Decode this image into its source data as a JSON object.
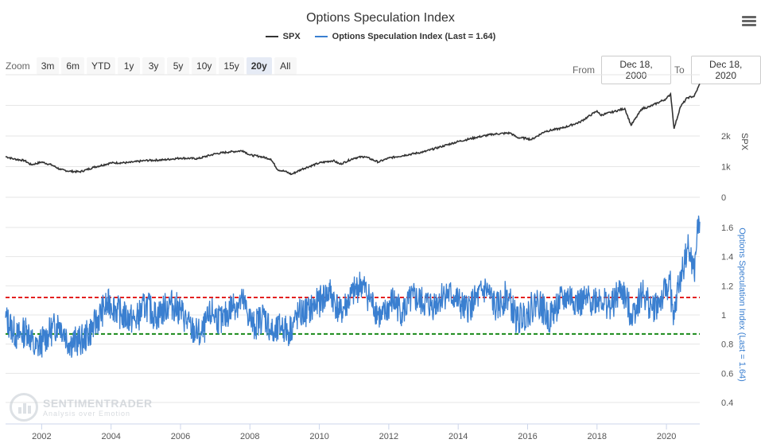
{
  "chart_data": [
    {
      "type": "line",
      "title": "Options Speculation Index",
      "series": [
        {
          "name": "SPX",
          "color": "#333333",
          "x": [
            2000.96,
            2001.2,
            2001.5,
            2001.7,
            2002.0,
            2002.3,
            2002.55,
            2002.8,
            2003.1,
            2003.3,
            2003.5,
            2004.0,
            2004.5,
            2005.0,
            2005.5,
            2006.0,
            2006.5,
            2007.0,
            2007.4,
            2007.8,
            2008.0,
            2008.3,
            2008.6,
            2008.8,
            2009.0,
            2009.2,
            2009.5,
            2010.0,
            2010.4,
            2010.6,
            2011.0,
            2011.3,
            2011.7,
            2012.0,
            2012.5,
            2013.0,
            2013.5,
            2014.0,
            2014.5,
            2015.0,
            2015.5,
            2015.7,
            2016.0,
            2016.1,
            2016.5,
            2017.0,
            2017.5,
            2018.0,
            2018.1,
            2018.5,
            2018.8,
            2018.98,
            2019.3,
            2019.5,
            2020.0,
            2020.12,
            2020.22,
            2020.4,
            2020.6,
            2020.8,
            2020.96
          ],
          "values": [
            1330,
            1250,
            1200,
            1060,
            1150,
            1050,
            900,
            850,
            830,
            900,
            980,
            1120,
            1130,
            1200,
            1220,
            1280,
            1260,
            1420,
            1480,
            1520,
            1380,
            1330,
            1250,
            900,
            850,
            750,
            920,
            1120,
            1200,
            1080,
            1280,
            1330,
            1150,
            1280,
            1380,
            1480,
            1650,
            1820,
            1950,
            2060,
            2100,
            1950,
            1920,
            1880,
            2150,
            2260,
            2450,
            2820,
            2680,
            2800,
            2900,
            2350,
            2900,
            2950,
            3220,
            3380,
            2240,
            2950,
            3250,
            3300,
            3700
          ]
        },
        {
          "name": "Options Speculation Index (Last = 1.64)",
          "color": "#3a7fd0",
          "x": [
            2000.96,
            2001.3,
            2001.6,
            2001.8,
            2002.2,
            2002.5,
            2002.8,
            2003.2,
            2003.5,
            2003.8,
            2004.0,
            2004.3,
            2004.7,
            2005.0,
            2005.3,
            2005.7,
            2006.0,
            2006.3,
            2006.6,
            2006.9,
            2007.2,
            2007.5,
            2007.8,
            2008.1,
            2008.4,
            2008.7,
            2008.9,
            2009.1,
            2009.4,
            2009.7,
            2010.0,
            2010.3,
            2010.6,
            2010.9,
            2011.2,
            2011.5,
            2011.8,
            2012.1,
            2012.4,
            2012.7,
            2013.0,
            2013.3,
            2013.6,
            2013.9,
            2014.2,
            2014.5,
            2014.8,
            2015.1,
            2015.4,
            2015.7,
            2016.0,
            2016.3,
            2016.6,
            2016.9,
            2017.2,
            2017.5,
            2017.8,
            2018.1,
            2018.4,
            2018.7,
            2019.0,
            2019.3,
            2019.6,
            2019.9,
            2020.1,
            2020.2,
            2020.3,
            2020.45,
            2020.6,
            2020.72,
            2020.8,
            2020.88,
            2020.96
          ],
          "values": [
            0.98,
            0.85,
            0.9,
            0.76,
            0.87,
            0.95,
            0.81,
            0.83,
            0.92,
            1.05,
            1.08,
            1.0,
            0.96,
            1.07,
            0.99,
            1.08,
            1.03,
            0.9,
            0.86,
            1.02,
            0.95,
            1.07,
            1.09,
            0.92,
            1.0,
            0.85,
            0.93,
            0.88,
            1.0,
            1.03,
            1.09,
            1.16,
            1.01,
            1.12,
            1.22,
            1.09,
            0.97,
            1.1,
            1.02,
            1.12,
            1.08,
            1.07,
            1.15,
            1.12,
            1.03,
            1.1,
            1.18,
            1.04,
            1.14,
            0.96,
            1.02,
            1.1,
            0.97,
            1.08,
            1.13,
            1.08,
            1.1,
            1.12,
            1.05,
            1.18,
            1.0,
            1.15,
            1.04,
            1.12,
            1.24,
            0.93,
            1.14,
            1.29,
            1.46,
            1.38,
            1.27,
            1.55,
            1.64
          ]
        }
      ],
      "reference_lines": [
        {
          "value": 1.12,
          "color": "#e32020",
          "style": "dashed"
        },
        {
          "value": 0.87,
          "color": "#1a8a1a",
          "style": "dashed"
        }
      ],
      "spx_axis": {
        "label": "SPX",
        "ticks": [
          "0",
          "1k",
          "2k"
        ]
      },
      "index_axis": {
        "label": "Options Speculation Index (Last = 1.64)",
        "ticks": [
          "0.4",
          "0.6",
          "0.8",
          "1",
          "1.2",
          "1.4",
          "1.6"
        ]
      },
      "x_axis": {
        "ticks": [
          "2002",
          "2004",
          "2006",
          "2008",
          "2010",
          "2012",
          "2014",
          "2016",
          "2018",
          "2020"
        ]
      },
      "legend_placement": "top-center"
    }
  ],
  "zoom": {
    "label": "Zoom",
    "buttons": [
      "3m",
      "6m",
      "YTD",
      "1y",
      "3y",
      "5y",
      "10y",
      "15y",
      "20y",
      "All"
    ],
    "active": "20y"
  },
  "range": {
    "from_label": "From",
    "from_value": "Dec 18, 2000",
    "to_label": "To",
    "to_value": "Dec 18, 2020"
  },
  "watermark": {
    "name": "SENTIMENTRADER",
    "tagline": "Analysis over Emotion"
  }
}
